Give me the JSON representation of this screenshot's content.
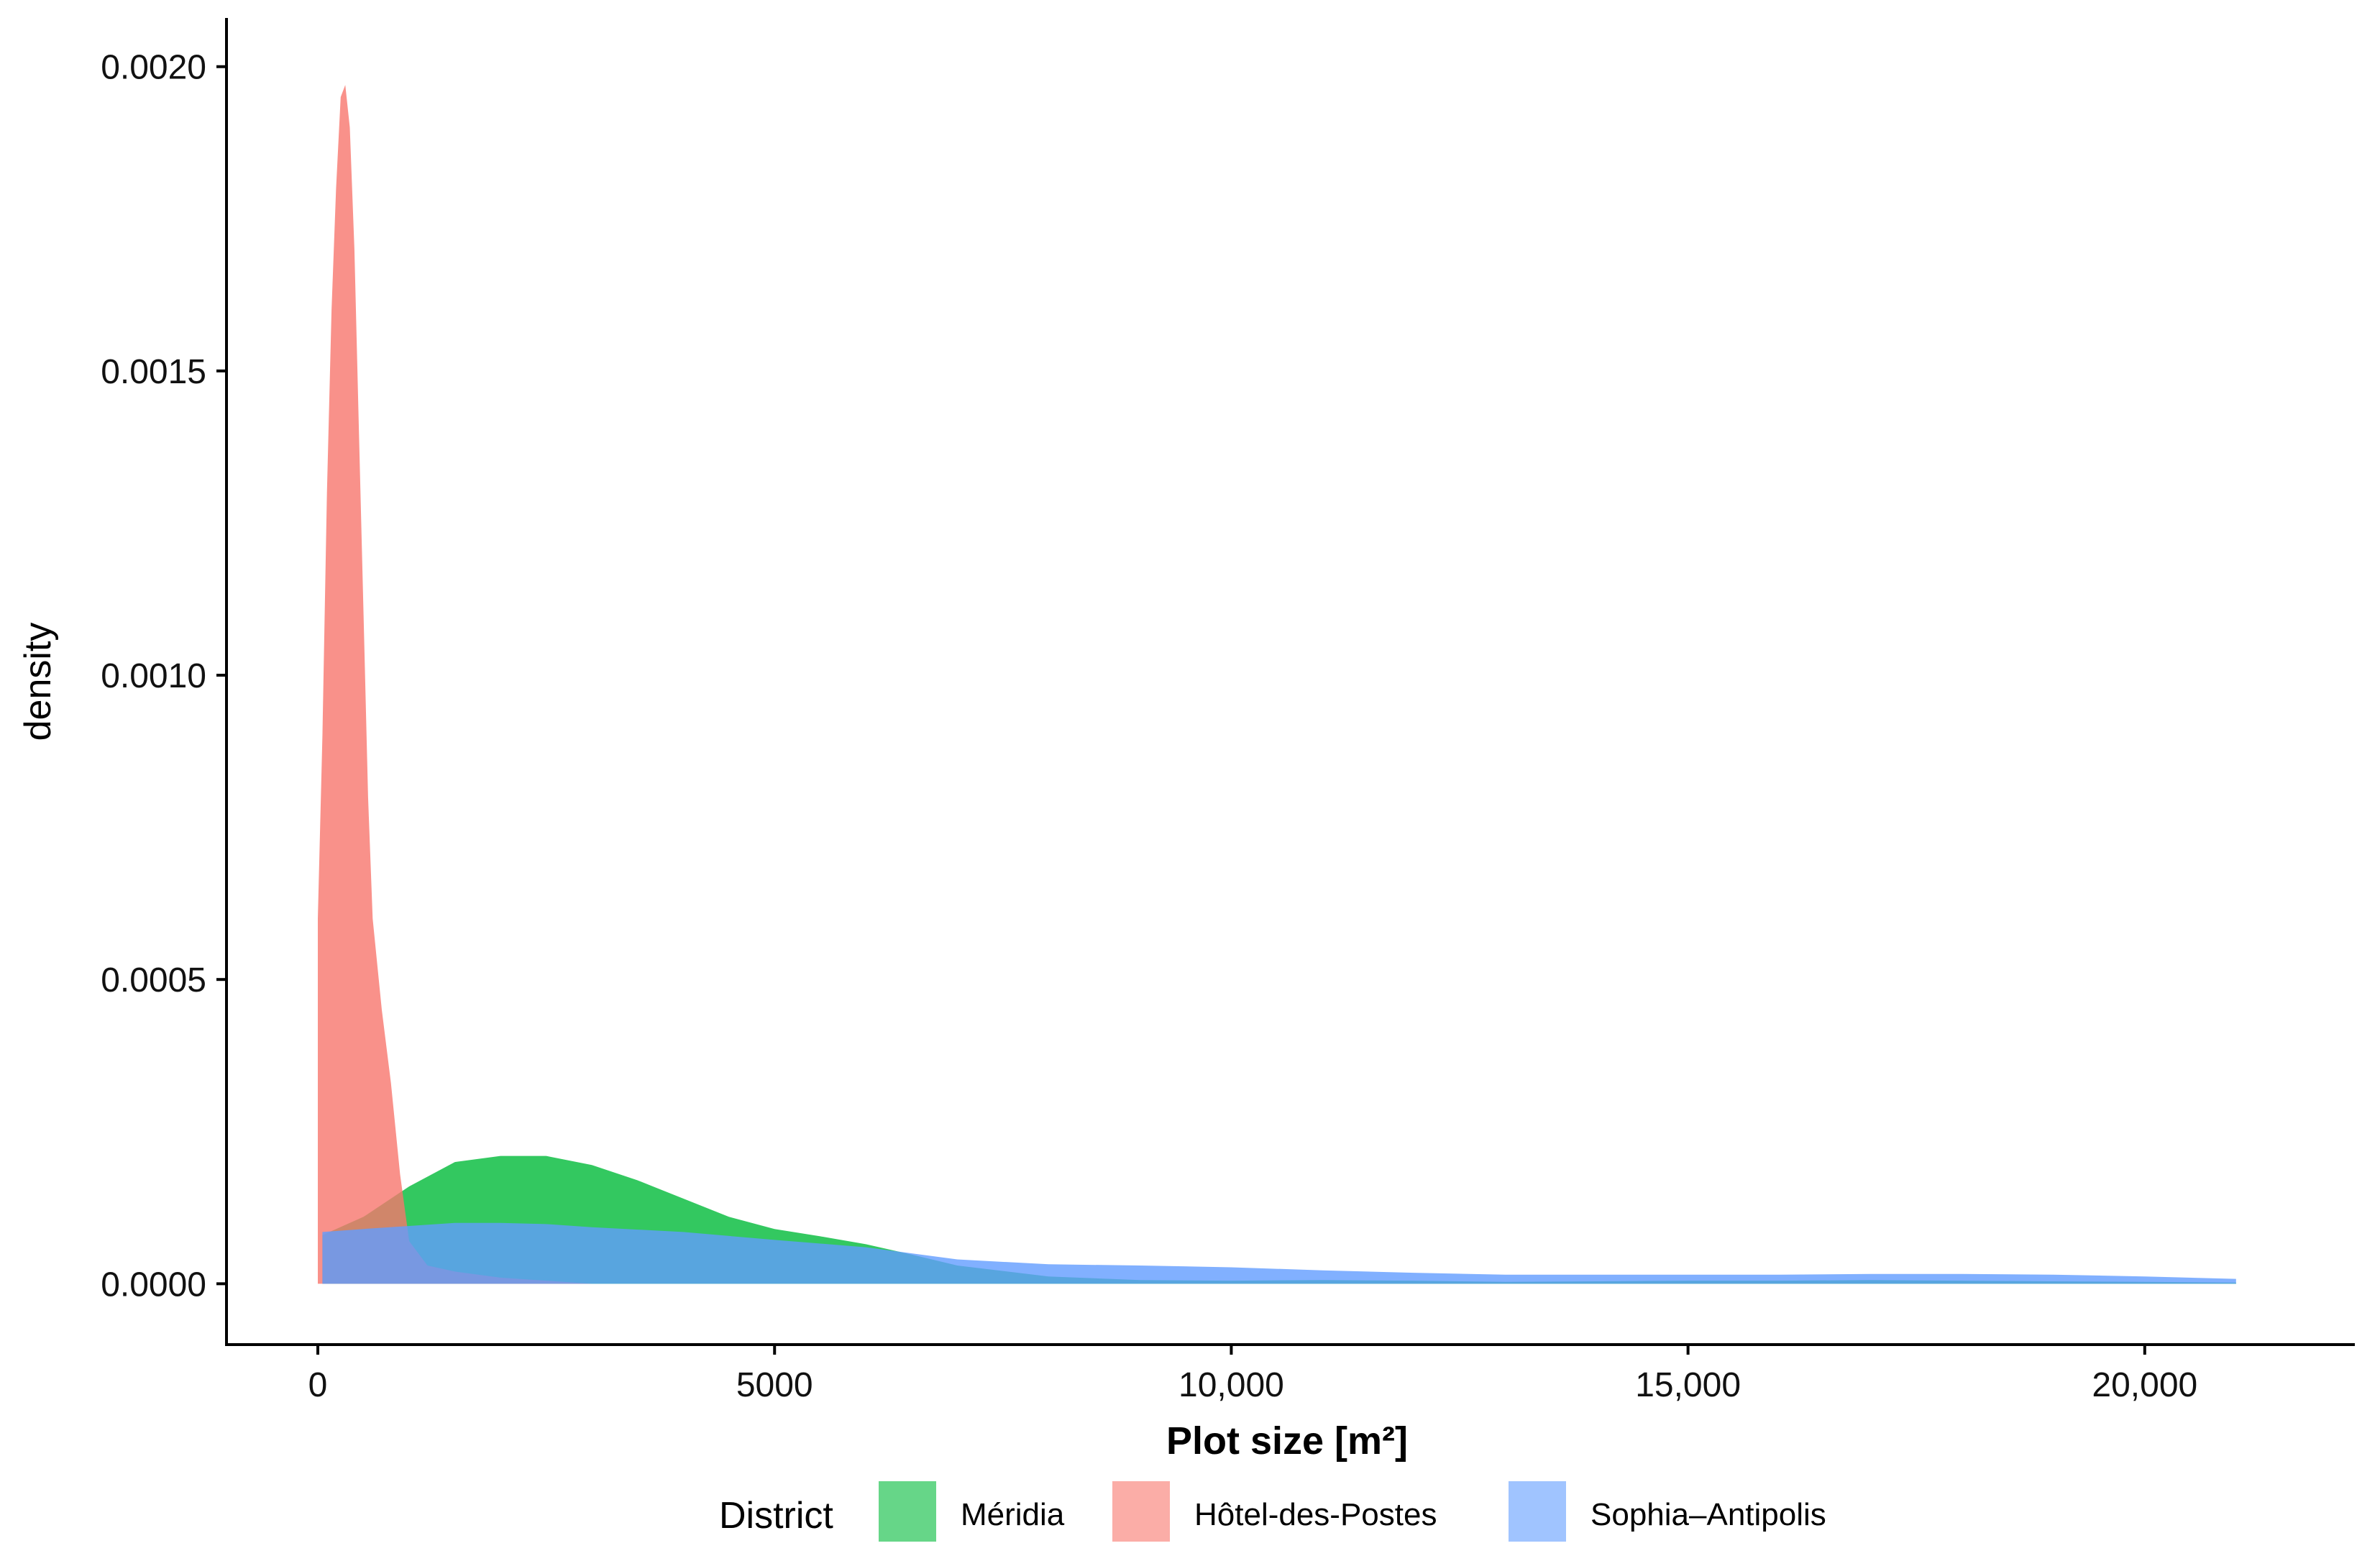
{
  "chart_data": {
    "type": "area",
    "subtype": "density",
    "xlabel": "Plot size [m²]",
    "ylabel": "density",
    "xlim": [
      -1000,
      22300
    ],
    "ylim": [
      -0.0001,
      0.00208
    ],
    "x_ticks": [
      {
        "value": 0,
        "label": "0"
      },
      {
        "value": 5000,
        "label": "5000"
      },
      {
        "value": 10000,
        "label": "10,000"
      },
      {
        "value": 15000,
        "label": "15,000"
      },
      {
        "value": 20000,
        "label": "20,000"
      }
    ],
    "y_ticks": [
      {
        "value": 0,
        "label": "0.0000"
      },
      {
        "value": 0.0005,
        "label": "0.0005"
      },
      {
        "value": 0.001,
        "label": "0.0010"
      },
      {
        "value": 0.0015,
        "label": "0.0015"
      },
      {
        "value": 0.002,
        "label": "0.0020"
      }
    ],
    "grid": false,
    "legend": {
      "title": "District",
      "position": "bottom"
    },
    "series": [
      {
        "name": "Méridia",
        "color": "#00BA38",
        "opacity": 0.8,
        "points": [
          [
            50,
            8e-05
          ],
          [
            500,
            0.00011
          ],
          [
            1000,
            0.00016
          ],
          [
            1500,
            0.0002
          ],
          [
            2000,
            0.00021
          ],
          [
            2500,
            0.00021
          ],
          [
            3000,
            0.000195
          ],
          [
            3500,
            0.00017
          ],
          [
            4000,
            0.00014
          ],
          [
            4500,
            0.00011
          ],
          [
            5000,
            9e-05
          ],
          [
            5500,
            7.8e-05
          ],
          [
            6000,
            6.5e-05
          ],
          [
            6500,
            4.8e-05
          ],
          [
            7000,
            3e-05
          ],
          [
            8000,
            1.2e-05
          ],
          [
            9000,
            6e-06
          ],
          [
            10000,
            5e-06
          ],
          [
            11000,
            6e-06
          ],
          [
            12000,
            5e-06
          ],
          [
            13000,
            3e-06
          ],
          [
            14000,
            4e-06
          ],
          [
            15000,
            5e-06
          ],
          [
            16000,
            5e-06
          ],
          [
            17000,
            6e-06
          ],
          [
            18000,
            5e-06
          ],
          [
            19000,
            4e-06
          ],
          [
            20000,
            3e-06
          ],
          [
            21000,
            2e-06
          ]
        ]
      },
      {
        "name": "Hôtel-des-Postes",
        "color": "#F8766D",
        "opacity": 0.8,
        "points": [
          [
            0,
            0.0006
          ],
          [
            50,
            0.0009
          ],
          [
            100,
            0.0013
          ],
          [
            150,
            0.0016
          ],
          [
            200,
            0.0018
          ],
          [
            250,
            0.00195
          ],
          [
            300,
            0.00197
          ],
          [
            350,
            0.0019
          ],
          [
            400,
            0.0017
          ],
          [
            450,
            0.0014
          ],
          [
            500,
            0.0011
          ],
          [
            550,
            0.0008
          ],
          [
            600,
            0.0006
          ],
          [
            700,
            0.00045
          ],
          [
            800,
            0.00033
          ],
          [
            900,
            0.00018
          ],
          [
            1000,
            7e-05
          ],
          [
            1200,
            3e-05
          ],
          [
            1500,
            2e-05
          ],
          [
            2000,
            1e-05
          ],
          [
            2500,
            5e-06
          ],
          [
            3000,
            0
          ]
        ]
      },
      {
        "name": "Sophia–Antipolis",
        "color": "#619CFF",
        "opacity": 0.8,
        "points": [
          [
            50,
            8.5e-05
          ],
          [
            500,
            9e-05
          ],
          [
            1000,
            9.5e-05
          ],
          [
            1500,
            0.0001
          ],
          [
            2000,
            0.0001
          ],
          [
            2500,
            9.8e-05
          ],
          [
            3000,
            9.3e-05
          ],
          [
            4000,
            8.5e-05
          ],
          [
            5000,
            7.2e-05
          ],
          [
            6000,
            6e-05
          ],
          [
            7000,
            4e-05
          ],
          [
            8000,
            3.2e-05
          ],
          [
            9000,
            3e-05
          ],
          [
            10000,
            2.7e-05
          ],
          [
            11000,
            2.2e-05
          ],
          [
            12000,
            1.8e-05
          ],
          [
            13000,
            1.5e-05
          ],
          [
            14000,
            1.5e-05
          ],
          [
            15000,
            1.5e-05
          ],
          [
            16000,
            1.5e-05
          ],
          [
            17000,
            1.6e-05
          ],
          [
            18000,
            1.6e-05
          ],
          [
            19000,
            1.5e-05
          ],
          [
            20000,
            1.2e-05
          ],
          [
            21000,
            8e-06
          ]
        ]
      }
    ]
  }
}
